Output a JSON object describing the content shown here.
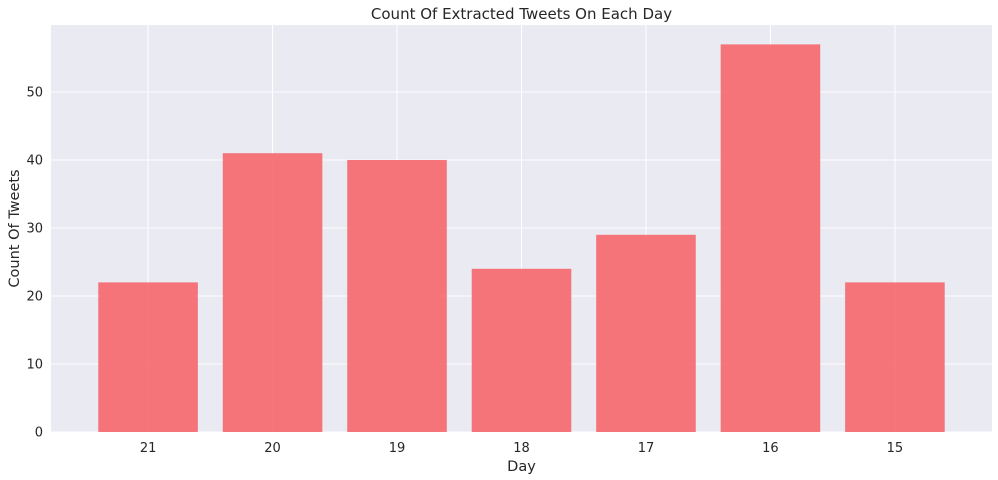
{
  "chart_data": {
    "type": "bar",
    "title": "Count Of Extracted Tweets On Each Day",
    "xlabel": "Day",
    "ylabel": "Count Of Tweets",
    "categories": [
      "21",
      "20",
      "19",
      "18",
      "17",
      "16",
      "15"
    ],
    "values": [
      22,
      41,
      40,
      24,
      29,
      57,
      22
    ],
    "ylim": [
      0,
      59.85
    ],
    "yticks": [
      0,
      10,
      20,
      30,
      40,
      50
    ],
    "grid": true,
    "bar_color": "#f6676b",
    "background_color": "#eaeaf2",
    "grid_color": "#ffffff"
  }
}
